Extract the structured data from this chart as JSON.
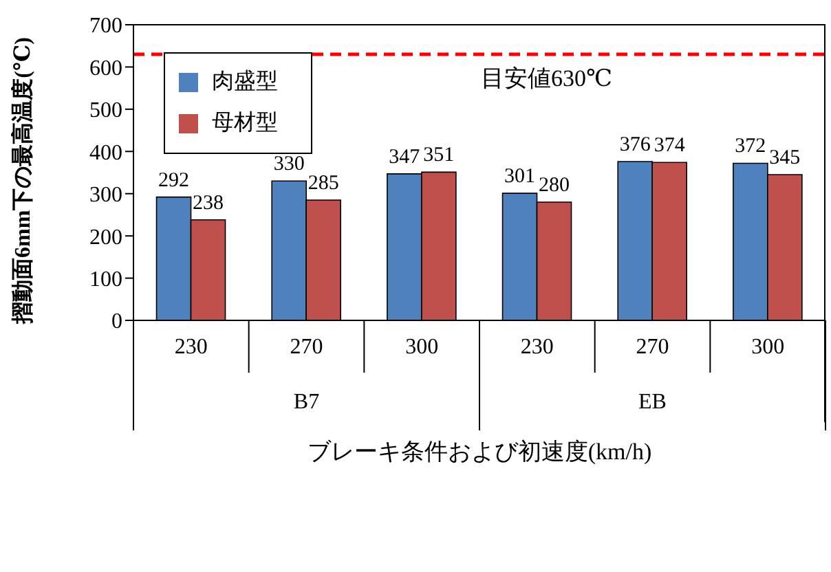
{
  "chart_data": {
    "type": "bar",
    "xlabel": "ブレーキ条件および初速度(km/h)",
    "ylabel": "摺動面6mm下の最高温度(℃)",
    "categories": [
      "230",
      "270",
      "300",
      "230",
      "270",
      "300"
    ],
    "series": [
      {
        "name": "肉盛型",
        "color": "#4f81bd",
        "values": [
          292,
          330,
          347,
          301,
          376,
          372
        ]
      },
      {
        "name": "母材型",
        "color": "#c0504d",
        "values": [
          238,
          285,
          351,
          280,
          374,
          345
        ]
      }
    ],
    "annotations": [
      "B7",
      "EB"
    ],
    "ylim": [
      0,
      700
    ],
    "yticks": [
      0,
      100,
      200,
      300,
      400,
      500,
      600,
      700
    ],
    "ref_lines": [
      {
        "axis": "y",
        "value": 630,
        "label": "目安値630℃",
        "color": "#ff0000",
        "line_style": "dashed"
      }
    ],
    "data_labels": true,
    "legend": "top left"
  }
}
